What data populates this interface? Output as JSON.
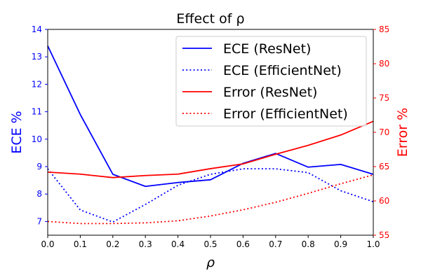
{
  "chart_data": {
    "type": "line",
    "title": "Effect of ρ",
    "xlabel": "ρ",
    "ylabel_left": "ECE %",
    "ylabel_right": "Error %",
    "xlim": [
      0.0,
      1.0
    ],
    "ylim_left": [
      6.5,
      14
    ],
    "ylim_right": [
      55,
      85
    ],
    "x_ticks": [
      "0.0",
      "0.1",
      "0.2",
      "0.3",
      "0.4",
      "0.5",
      "0.6",
      "0.7",
      "0.8",
      "0.9",
      "1.0"
    ],
    "y_ticks_left": [
      "7",
      "8",
      "9",
      "10",
      "11",
      "12",
      "13",
      "14"
    ],
    "y_ticks_right": [
      "55",
      "60",
      "65",
      "70",
      "75",
      "80",
      "85"
    ],
    "grid": false,
    "legend_position": "top-right",
    "colors": {
      "left_axis": "#0000ff",
      "right_axis": "#ff0000"
    },
    "x": [
      0.0,
      0.1,
      0.2,
      0.3,
      0.4,
      0.5,
      0.6,
      0.7,
      0.8,
      0.9,
      1.0
    ],
    "series": [
      {
        "name": "ECE (ResNet)",
        "axis": "left",
        "color": "#0000ff",
        "style": "solid",
        "values": [
          13.4,
          10.9,
          8.72,
          8.28,
          8.42,
          8.52,
          9.12,
          9.48,
          8.98,
          9.08,
          8.72
        ]
      },
      {
        "name": "ECE (EfficientNet)",
        "axis": "left",
        "color": "#0000ff",
        "style": "dotted",
        "values": [
          8.92,
          7.42,
          6.98,
          7.62,
          8.32,
          8.72,
          8.92,
          8.92,
          8.78,
          8.12,
          7.72
        ]
      },
      {
        "name": "Error (ResNet)",
        "axis": "right",
        "color": "#ff0000",
        "style": "solid",
        "values": [
          64.2,
          63.9,
          63.4,
          63.7,
          63.9,
          64.7,
          65.4,
          66.8,
          68.1,
          69.6,
          71.6
        ]
      },
      {
        "name": "Error (EfficientNet)",
        "axis": "right",
        "color": "#ff0000",
        "style": "dotted",
        "values": [
          57.0,
          56.7,
          56.7,
          56.8,
          57.1,
          57.8,
          58.7,
          59.8,
          61.1,
          62.5,
          63.8
        ]
      }
    ]
  }
}
